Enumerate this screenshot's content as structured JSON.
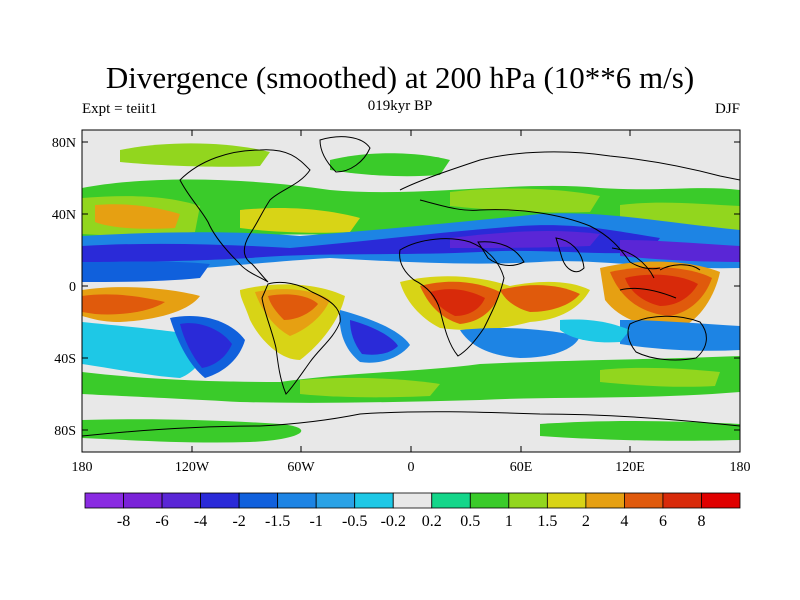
{
  "title": "Divergence (smoothed) at 200 hPa (10**6 m/s)",
  "subtitle_left": "Expt = teiit1",
  "subtitle_center": "019kyr BP",
  "subtitle_right": "DJF",
  "lat_ticks": [
    "80N",
    "40N",
    "0",
    "40S",
    "80S"
  ],
  "lon_ticks": [
    "180",
    "120W",
    "60W",
    "0",
    "60E",
    "120E",
    "180"
  ],
  "colorbar": {
    "labels": [
      "-8",
      "-6",
      "-4",
      "-2",
      "-1.5",
      "-1",
      "-0.5",
      "-0.2",
      "0.2",
      "0.5",
      "1",
      "1.5",
      "2",
      "4",
      "6",
      "8"
    ],
    "colors": [
      "#8a2be2",
      "#7a22d8",
      "#5a26d6",
      "#2a2ad8",
      "#1060dc",
      "#1d84e4",
      "#2aa2e6",
      "#1ec8e6",
      "#e8e8e8",
      "#14d68a",
      "#3acb2a",
      "#92d61e",
      "#d8d416",
      "#e6a012",
      "#e05a0c",
      "#d82a0a",
      "#e00000"
    ]
  }
}
